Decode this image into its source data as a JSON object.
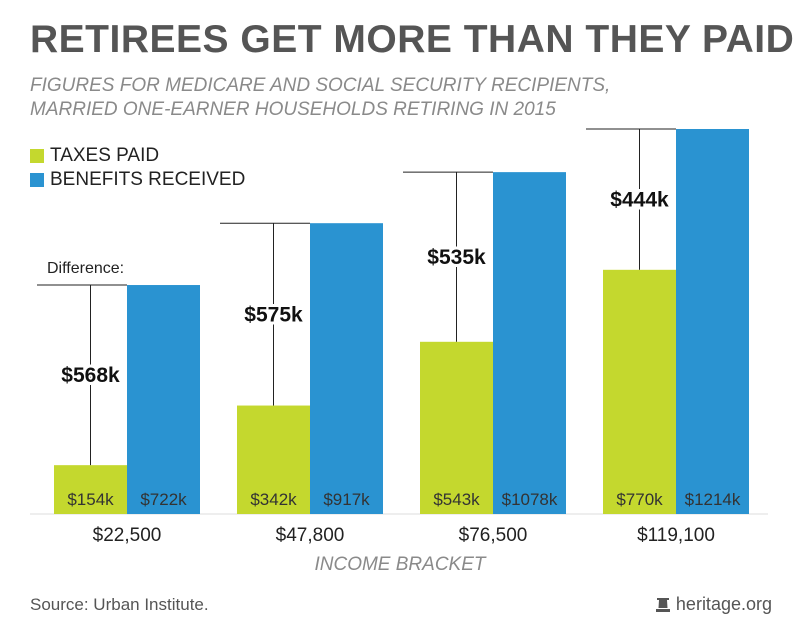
{
  "title": "RETIREES GET MORE THAN THEY PAID",
  "subtitle_lines": [
    "FIGURES FOR MEDICARE AND SOCIAL SECURITY RECIPIENTS,",
    "MARRIED ONE-EARNER HOUSEHOLDS RETIRING IN 2015"
  ],
  "source": "Source: Urban Institute.",
  "brand": "heritage.org",
  "colors": {
    "taxes": "#c4d82e",
    "benefits": "#2a93d1",
    "text": "#555555",
    "axis_label": "#8a8a8a"
  },
  "chart_data": {
    "type": "bar",
    "title": "RETIREES GET MORE THAN THEY PAID",
    "xlabel": "INCOME BRACKET",
    "ylabel": "",
    "categories": [
      "$22,500",
      "$47,800",
      "$76,500",
      "$119,100"
    ],
    "series": [
      {
        "name": "TAXES PAID",
        "values": [
          154,
          342,
          543,
          770
        ],
        "labels": [
          "$154k",
          "$342k",
          "$543k",
          "$770k"
        ]
      },
      {
        "name": "BENEFITS RECEIVED",
        "values": [
          722,
          917,
          1078,
          1214
        ],
        "labels": [
          "$722k",
          "$917k",
          "$1078k",
          "$1214k"
        ]
      }
    ],
    "differences": [
      {
        "label": "$568k"
      },
      {
        "label": "$575k"
      },
      {
        "label": "$535k"
      },
      {
        "label": "$444k"
      }
    ],
    "annotation": "Difference:",
    "ylim": [
      0,
      1214
    ],
    "grid": false,
    "legend_position": "top-left"
  }
}
